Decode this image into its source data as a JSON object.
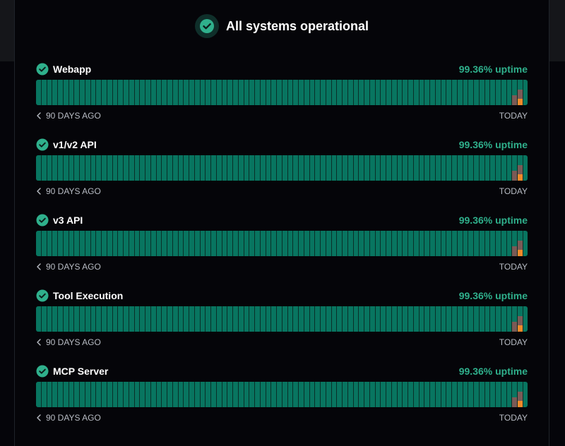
{
  "header": {
    "title": "All systems operational"
  },
  "services": [
    {
      "name": "Webapp",
      "uptime": "99.36% uptime",
      "range_start": "90 DAYS AGO",
      "range_end": "TODAY"
    },
    {
      "name": "v1/v2 API",
      "uptime": "99.36% uptime",
      "range_start": "90 DAYS AGO",
      "range_end": "TODAY"
    },
    {
      "name": "v3 API",
      "uptime": "99.36% uptime",
      "range_start": "90 DAYS AGO",
      "range_end": "TODAY"
    },
    {
      "name": "Tool Execution",
      "uptime": "99.36% uptime",
      "range_start": "90 DAYS AGO",
      "range_end": "TODAY"
    },
    {
      "name": "MCP Server",
      "uptime": "99.36% uptime",
      "range_start": "90 DAYS AGO",
      "range_end": "TODAY"
    }
  ],
  "days": 90,
  "colors": {
    "operational": "#087560",
    "accent": "#2fb08c",
    "minor": "#7a5a56",
    "major": "#f08a2a"
  }
}
